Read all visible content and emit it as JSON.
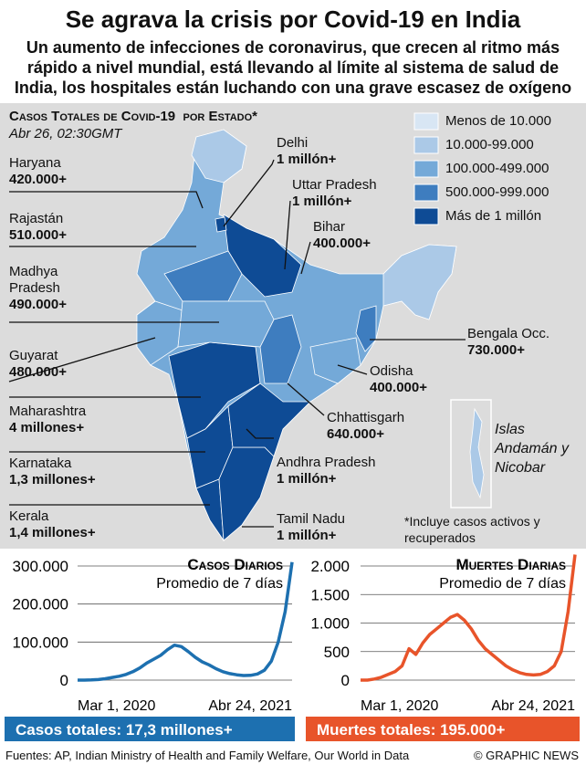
{
  "header": {
    "title": "Se agrava la crisis por Covid-19 en India",
    "subtitle": "Un aumento de infecciones de coronavirus, que crecen al ritmo más rápido a nivel mundial, está llevando al límite al sistema de salud de India, los hospitales están luchando con una grave escasez de oxígeno"
  },
  "map": {
    "title": "Casos Totales de Covid-19  por Estado*",
    "date": "Abr 26, 02:30GMT",
    "legend": [
      {
        "label": "Menos de 10.000",
        "color": "#d8e6f4"
      },
      {
        "label": "10.000-99.000",
        "color": "#abc9e7"
      },
      {
        "label": "100.000-499.000",
        "color": "#74a9d8"
      },
      {
        "label": "500.000-999.000",
        "color": "#3e7dbf"
      },
      {
        "label": "Más de 1 millón",
        "color": "#0e4b95"
      }
    ],
    "states": [
      {
        "name": "Haryana",
        "value": "420.000+"
      },
      {
        "name": "Rajastán",
        "value": "510.000+"
      },
      {
        "name": "Madhya Pradesh",
        "value": "490.000+"
      },
      {
        "name": "Guyarat",
        "value": "480.000+"
      },
      {
        "name": "Maharashtra",
        "value": "4 millones+"
      },
      {
        "name": "Karnataka",
        "value": "1,3 millones+"
      },
      {
        "name": "Kerala",
        "value": "1,4 millones+"
      },
      {
        "name": "Delhi",
        "value": "1 millón+"
      },
      {
        "name": "Uttar Pradesh",
        "value": "1 millón+"
      },
      {
        "name": "Bihar",
        "value": "400.000+"
      },
      {
        "name": "Bengala Occ.",
        "value": "730.000+"
      },
      {
        "name": "Odisha",
        "value": "400.000+"
      },
      {
        "name": "Chhattisgarh",
        "value": "640.000+"
      },
      {
        "name": "Andhra Pradesh",
        "value": "1 millón+"
      },
      {
        "name": "Tamil Nadu",
        "value": "1 millón+"
      }
    ],
    "islands": "Islas Andamán y Nicobar",
    "note": "*Incluye casos activos y recuperados"
  },
  "chart_data": [
    {
      "type": "line",
      "title": "Casos Diarios",
      "subtitle": "Promedio de 7 días",
      "color": "#1d70b0",
      "x_labels": [
        "Mar 1, 2020",
        "Abr 24, 2021"
      ],
      "values": [
        0,
        0,
        500,
        1500,
        3500,
        7000,
        10000,
        15000,
        22000,
        32000,
        45000,
        55000,
        65000,
        80000,
        92000,
        88000,
        75000,
        60000,
        48000,
        40000,
        30000,
        22000,
        17000,
        14000,
        12000,
        12500,
        16000,
        26000,
        50000,
        100000,
        180000,
        310000
      ],
      "ylim": [
        0,
        300000
      ],
      "yticks": [
        0,
        {
          "value": 100000,
          "label": "100.000"
        },
        {
          "value": 200000,
          "label": "200.000"
        },
        {
          "value": 300000,
          "label": "300.000"
        }
      ],
      "grid": true,
      "total": "Casos totales: 17,3 millones+"
    },
    {
      "type": "line",
      "title": "Muertes Diarias",
      "subtitle": "Promedio de 7 días",
      "color": "#e8542a",
      "x_labels": [
        "Mar 1, 2020",
        "Abr 24, 2021"
      ],
      "values": [
        0,
        0,
        20,
        50,
        100,
        150,
        250,
        550,
        450,
        650,
        800,
        900,
        1000,
        1100,
        1150,
        1050,
        900,
        700,
        550,
        450,
        350,
        250,
        180,
        130,
        100,
        90,
        100,
        150,
        250,
        500,
        1200,
        2200
      ],
      "ylim": [
        0,
        2000
      ],
      "yticks": [
        0,
        500,
        {
          "value": 1000,
          "label": "1.000"
        },
        {
          "value": 1500,
          "label": "1.500"
        },
        {
          "value": 2000,
          "label": "2.000"
        }
      ],
      "grid": true,
      "total": "Muertes totales: 195.000+"
    }
  ],
  "footer": {
    "source": "Fuentes: AP, Indian Ministry of Health and Family Welfare, Our World in Data",
    "credit": "© GRAPHIC NEWS"
  }
}
